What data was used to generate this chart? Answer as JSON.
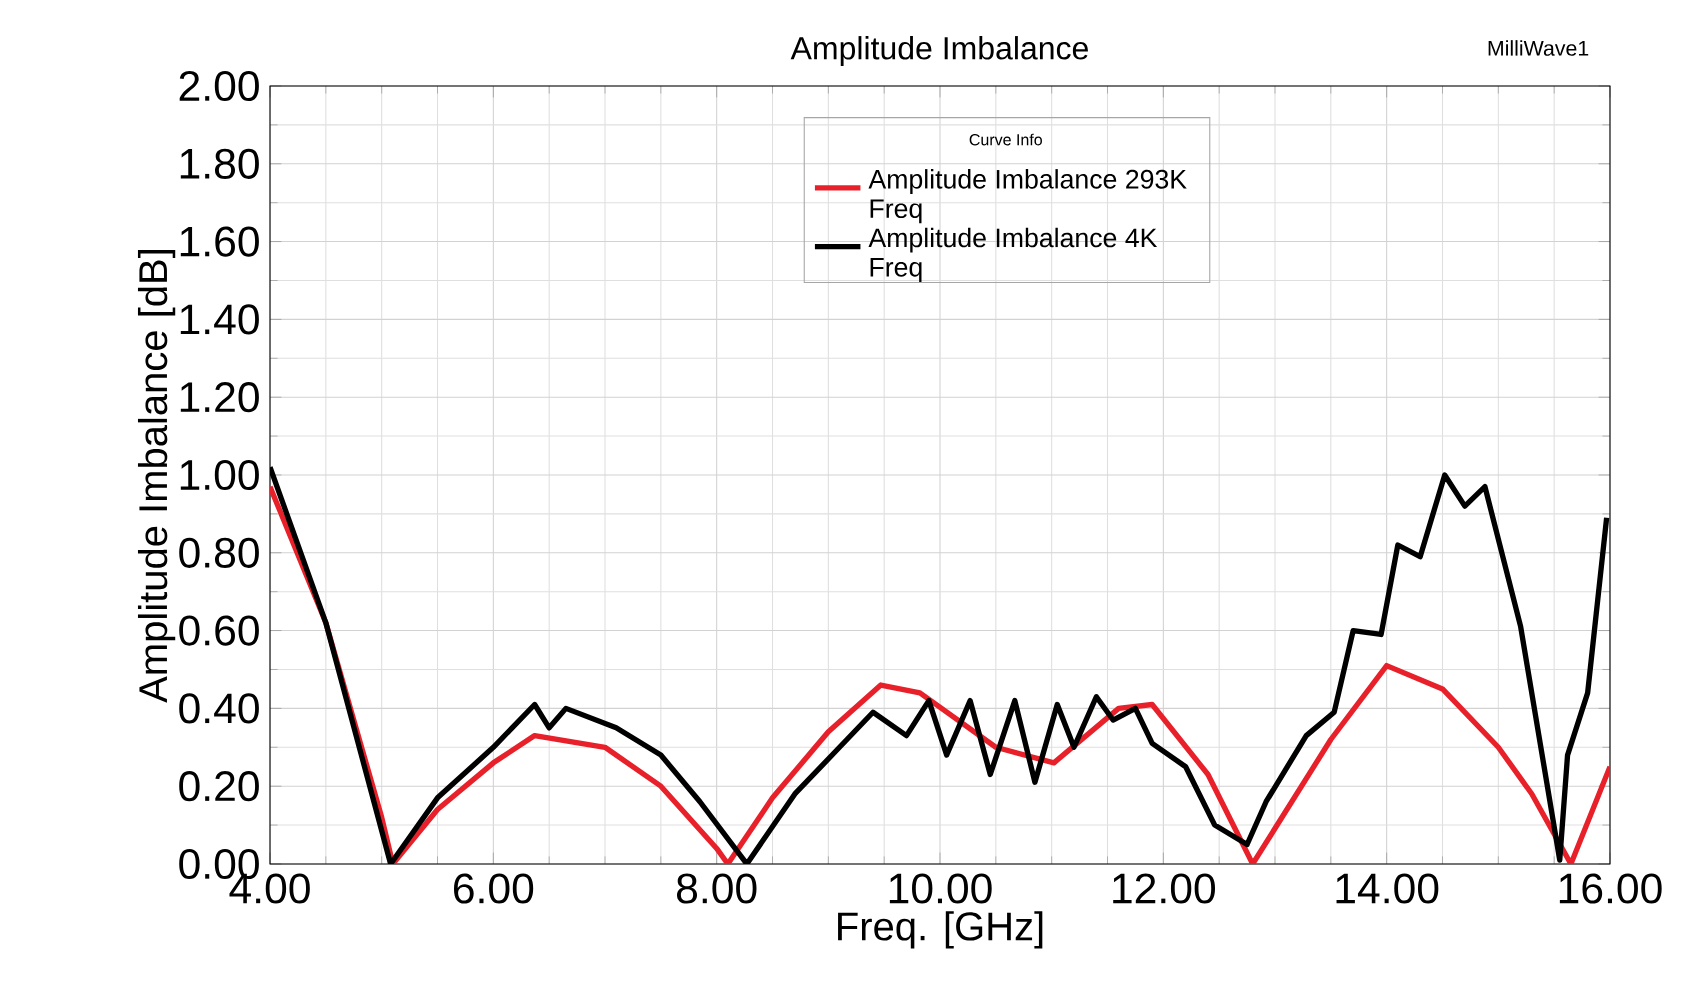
{
  "chart_data": {
    "type": "line",
    "title": "Amplitude Imbalance",
    "xlabel": "Freq. [GHz]",
    "ylabel": "Amplitude Imbalance [dB]",
    "legend_title": "Curve Info",
    "annotations": [
      "MilliWave1"
    ],
    "xlim": [
      4,
      16
    ],
    "ylim": [
      0,
      2
    ],
    "xticks": [
      {
        "value": 4,
        "label": "4.00"
      },
      {
        "value": 6,
        "label": "6.00"
      },
      {
        "value": 8,
        "label": "8.00"
      },
      {
        "value": 10,
        "label": "10.00"
      },
      {
        "value": 12,
        "label": "12.00"
      },
      {
        "value": 14,
        "label": "14.00"
      },
      {
        "value": 16,
        "label": "16.00"
      }
    ],
    "yticks": [
      {
        "value": 0,
        "label": "0.00"
      },
      {
        "value": 0.2,
        "label": "0.20"
      },
      {
        "value": 0.4,
        "label": "0.40"
      },
      {
        "value": 0.6,
        "label": "0.60"
      },
      {
        "value": 0.8,
        "label": "0.80"
      },
      {
        "value": 1.0,
        "label": "1.00"
      },
      {
        "value": 1.2,
        "label": "1.20"
      },
      {
        "value": 1.4,
        "label": "1.40"
      },
      {
        "value": 1.6,
        "label": "1.60"
      },
      {
        "value": 1.8,
        "label": "1.80"
      },
      {
        "value": 2.0,
        "label": "2.00"
      }
    ],
    "grid": true,
    "legend": "top",
    "marker": "none",
    "line_style": "solid",
    "series": [
      {
        "name": "Amplitude Imbalance 293K Freq",
        "color": "#e8202a",
        "x": [
          4,
          4.5,
          5,
          5.1,
          5.5,
          6,
          6.37,
          7,
          7.5,
          8,
          8.1,
          8.5,
          9,
          9.47,
          9.82,
          10.5,
          11.02,
          11.6,
          11.9,
          12.4,
          12.8,
          13.5,
          14,
          14.5,
          15,
          15.3,
          15.65,
          16
        ],
        "values": [
          0.97,
          0.62,
          0.12,
          0,
          0.14,
          0.26,
          0.33,
          0.3,
          0.2,
          0.04,
          0,
          0.17,
          0.34,
          0.46,
          0.44,
          0.3,
          0.26,
          0.4,
          0.41,
          0.23,
          0,
          0.32,
          0.51,
          0.45,
          0.3,
          0.18,
          0,
          0.25
        ]
      },
      {
        "name": "Amplitude Imbalance 4K Freq",
        "color": "#000000",
        "x": [
          4,
          4.5,
          5.08,
          5.5,
          6,
          6.37,
          6.5,
          6.65,
          7.1,
          7.5,
          7.85,
          8.27,
          8.7,
          9.1,
          9.4,
          9.7,
          9.9,
          10.06,
          10.27,
          10.45,
          10.67,
          10.85,
          11.05,
          11.2,
          11.4,
          11.55,
          11.75,
          11.9,
          12.2,
          12.46,
          12.75,
          12.92,
          13.28,
          13.53,
          13.7,
          13.95,
          14.1,
          14.3,
          14.52,
          14.7,
          14.88,
          15.2,
          15.55,
          15.62,
          15.8,
          15.97
        ],
        "values": [
          1.02,
          0.62,
          0,
          0.17,
          0.3,
          0.41,
          0.35,
          0.4,
          0.35,
          0.28,
          0.16,
          0,
          0.18,
          0.3,
          0.39,
          0.33,
          0.42,
          0.28,
          0.42,
          0.23,
          0.42,
          0.21,
          0.41,
          0.3,
          0.43,
          0.37,
          0.4,
          0.31,
          0.25,
          0.1,
          0.05,
          0.16,
          0.33,
          0.39,
          0.6,
          0.59,
          0.82,
          0.79,
          1.0,
          0.92,
          0.97,
          0.61,
          0.01,
          0.28,
          0.44,
          0.89
        ]
      }
    ]
  }
}
